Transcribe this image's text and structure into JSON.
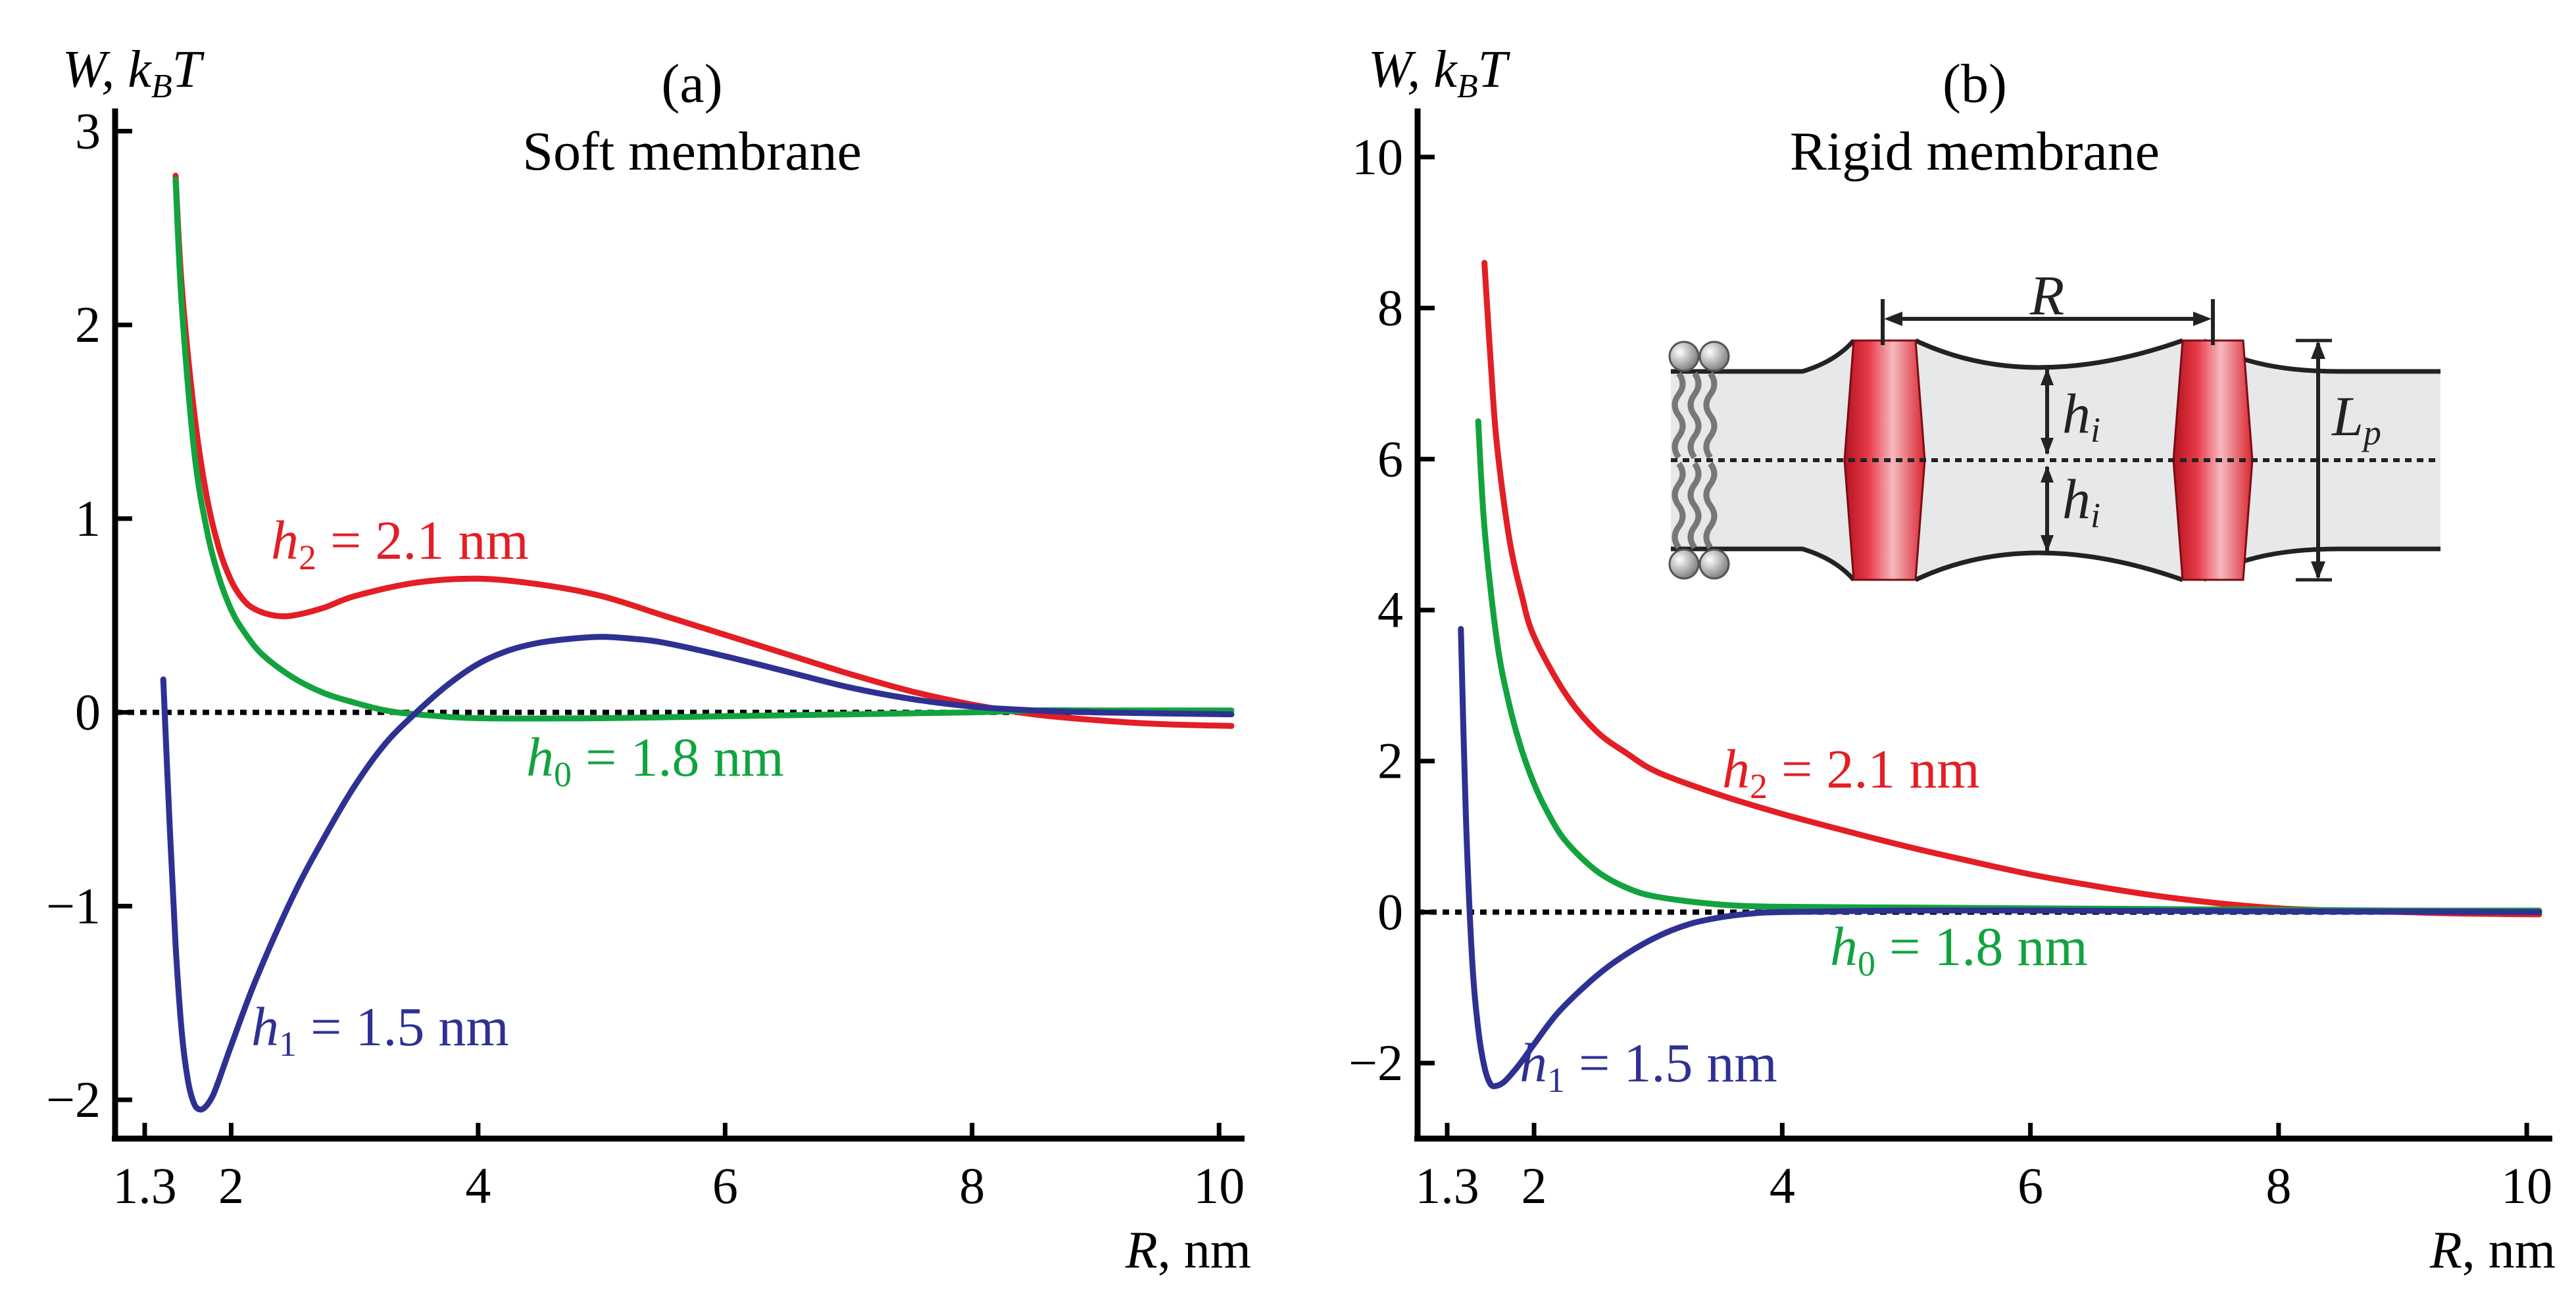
{
  "chart_data": [
    {
      "type": "line",
      "panel": "(a)",
      "title": "Soft membrane",
      "ylabel": "W, k_BT",
      "ylabel_main": "W, k",
      "ylabel_sub": "B",
      "ylabel_end": "T",
      "xlabel_var": "R",
      "xlabel_unit": ", nm",
      "xlim": [
        1.3,
        10.1
      ],
      "ylim": [
        -2.2,
        3.1
      ],
      "xticks": [
        1.3,
        2,
        4,
        6,
        8,
        10
      ],
      "xtick_labels": [
        "1.3",
        "2",
        "4",
        "6",
        "8",
        "10"
      ],
      "yticks": [
        -2,
        -1,
        0,
        1,
        2,
        3
      ],
      "ytick_labels": [
        "−2",
        "−1",
        "0",
        "1",
        "2",
        "3"
      ],
      "series": [
        {
          "name": "h2 = 2.1 nm",
          "var": "h",
          "sub": "2",
          "value_text": " = 2.1 nm",
          "color": "#e31e24",
          "x": [
            1.55,
            1.6,
            1.7,
            1.8,
            1.9,
            2.0,
            2.1,
            2.2,
            2.35,
            2.5,
            2.75,
            3.0,
            3.5,
            4.0,
            4.5,
            5.0,
            5.5,
            6.0,
            6.5,
            7.0,
            7.5,
            8.0,
            8.5,
            9.0,
            9.5,
            10.1
          ],
          "y": [
            2.77,
            2.2,
            1.55,
            1.12,
            0.85,
            0.68,
            0.58,
            0.53,
            0.5,
            0.5,
            0.54,
            0.6,
            0.67,
            0.69,
            0.66,
            0.6,
            0.5,
            0.4,
            0.3,
            0.2,
            0.11,
            0.04,
            -0.01,
            -0.04,
            -0.06,
            -0.07
          ]
        },
        {
          "name": "h0 = 1.8 nm",
          "var": "h",
          "sub": "0",
          "value_text": " = 1.8 nm",
          "color": "#12a33f",
          "x": [
            1.55,
            1.6,
            1.7,
            1.8,
            1.9,
            2.0,
            2.1,
            2.25,
            2.5,
            2.75,
            3.0,
            3.25,
            3.5,
            4.0,
            5.0,
            6.0,
            7.0,
            8.0,
            8.5,
            9.0,
            10.1
          ],
          "y": [
            2.75,
            2.1,
            1.35,
            0.95,
            0.7,
            0.53,
            0.42,
            0.3,
            0.18,
            0.1,
            0.05,
            0.01,
            -0.01,
            -0.03,
            -0.03,
            -0.02,
            -0.01,
            0.0,
            0.01,
            0.01,
            0.01
          ]
        },
        {
          "name": "h1 = 1.5 nm",
          "var": "h",
          "sub": "1",
          "value_text": " = 1.5 nm",
          "color": "#2e3192",
          "x": [
            1.45,
            1.5,
            1.55,
            1.6,
            1.65,
            1.7,
            1.75,
            1.8,
            1.85,
            1.9,
            2.0,
            2.2,
            2.5,
            2.75,
            3.0,
            3.25,
            3.5,
            3.75,
            4.0,
            4.25,
            4.5,
            4.75,
            5.0,
            5.25,
            5.5,
            6.0,
            6.5,
            7.0,
            7.5,
            8.0,
            8.5,
            9.0,
            10.1
          ],
          "y": [
            0.17,
            -0.55,
            -1.2,
            -1.65,
            -1.9,
            -2.02,
            -2.05,
            -2.03,
            -1.98,
            -1.9,
            -1.72,
            -1.38,
            -0.95,
            -0.65,
            -0.38,
            -0.16,
            0.0,
            0.14,
            0.25,
            0.32,
            0.36,
            0.38,
            0.39,
            0.38,
            0.36,
            0.29,
            0.21,
            0.13,
            0.07,
            0.03,
            0.01,
            0.0,
            -0.01
          ]
        }
      ]
    },
    {
      "type": "line",
      "panel": "(b)",
      "title": "Rigid membrane",
      "ylabel": "W, k_BT",
      "ylabel_main": "W, k",
      "ylabel_sub": "B",
      "ylabel_end": "T",
      "xlabel_var": "R",
      "xlabel_unit": ", nm",
      "xlim": [
        1.3,
        10.1
      ],
      "ylim": [
        -3.0,
        10.6
      ],
      "xticks": [
        1.3,
        2,
        4,
        6,
        8,
        10
      ],
      "xtick_labels": [
        "1.3",
        "2",
        "4",
        "6",
        "8",
        "10"
      ],
      "yticks": [
        -2,
        0,
        2,
        4,
        6,
        8,
        10
      ],
      "ytick_labels": [
        "−2",
        "0",
        "2",
        "4",
        "6",
        "8",
        "10"
      ],
      "series": [
        {
          "name": "h2 = 2.1 nm",
          "var": "h",
          "sub": "2",
          "value_text": " = 2.1 nm",
          "color": "#e31e24",
          "x": [
            1.6,
            1.65,
            1.7,
            1.8,
            1.9,
            2.0,
            2.25,
            2.5,
            2.75,
            3.0,
            3.5,
            4.0,
            4.5,
            5.0,
            5.5,
            6.0,
            6.5,
            7.0,
            7.5,
            8.0,
            8.5,
            9.0,
            9.5,
            10.1
          ],
          "y": [
            8.6,
            7.3,
            6.2,
            4.95,
            4.2,
            3.65,
            2.9,
            2.4,
            2.1,
            1.85,
            1.55,
            1.3,
            1.08,
            0.87,
            0.68,
            0.5,
            0.35,
            0.22,
            0.12,
            0.05,
            0.02,
            0.0,
            -0.02,
            -0.03
          ]
        },
        {
          "name": "h0 = 1.8 nm",
          "var": "h",
          "sub": "0",
          "value_text": " = 1.8 nm",
          "color": "#12a33f",
          "x": [
            1.55,
            1.6,
            1.7,
            1.8,
            1.9,
            2.0,
            2.1,
            2.25,
            2.5,
            2.75,
            3.0,
            3.5,
            4.0,
            5.0,
            6.0,
            7.0,
            8.0,
            9.0,
            10.1
          ],
          "y": [
            6.5,
            5.1,
            3.6,
            2.75,
            2.15,
            1.7,
            1.35,
            0.95,
            0.55,
            0.32,
            0.2,
            0.1,
            0.07,
            0.06,
            0.05,
            0.04,
            0.03,
            0.02,
            0.02
          ]
        },
        {
          "name": "h1 = 1.5 nm",
          "var": "h",
          "sub": "1",
          "value_text": " = 1.5 nm",
          "color": "#2e3192",
          "x": [
            1.41,
            1.45,
            1.5,
            1.55,
            1.6,
            1.65,
            1.7,
            1.75,
            1.8,
            1.9,
            2.0,
            2.2,
            2.5,
            2.75,
            3.0,
            3.25,
            3.5,
            3.75,
            4.0,
            5.0,
            6.0,
            8.0,
            10.1
          ],
          "y": [
            3.75,
            1.3,
            -0.6,
            -1.55,
            -2.05,
            -2.28,
            -2.3,
            -2.26,
            -2.18,
            -1.98,
            -1.75,
            -1.32,
            -0.85,
            -0.55,
            -0.32,
            -0.16,
            -0.07,
            -0.02,
            0.0,
            0.02,
            0.02,
            0.01,
            0.0
          ]
        }
      ]
    }
  ],
  "inset": {
    "label_R": "R",
    "label_h": "h",
    "label_h_sub": "i",
    "label_L": "L",
    "label_L_sub": "p"
  }
}
